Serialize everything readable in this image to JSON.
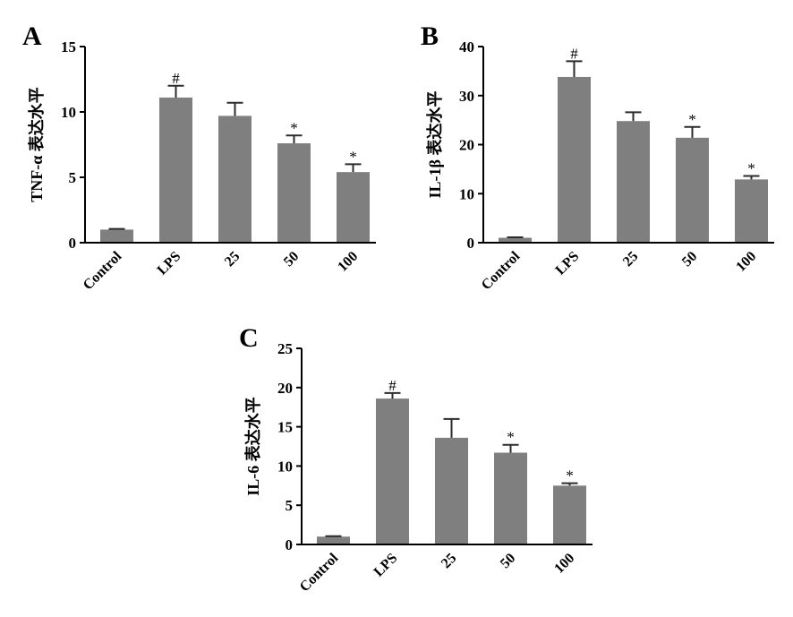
{
  "chart_data": [
    {
      "type": "bar",
      "panel": "A",
      "ylabel": "TNF-α 表达水平",
      "categories": [
        "Control",
        "LPS",
        "25",
        "50",
        "100"
      ],
      "values": [
        1.0,
        11.1,
        9.7,
        7.6,
        5.4
      ],
      "errors": [
        0.05,
        0.9,
        1.0,
        0.6,
        0.6
      ],
      "significance": [
        "",
        "#",
        "",
        "*",
        "*"
      ],
      "ylim": [
        0,
        15
      ],
      "yticks": [
        0,
        5,
        10,
        15
      ]
    },
    {
      "type": "bar",
      "panel": "B",
      "ylabel": "IL-1β 表达水平",
      "categories": [
        "Control",
        "LPS",
        "25",
        "50",
        "100"
      ],
      "values": [
        1.0,
        33.8,
        24.8,
        21.4,
        12.9
      ],
      "errors": [
        0.1,
        3.2,
        1.8,
        2.2,
        0.7
      ],
      "significance": [
        "",
        "#",
        "",
        "*",
        "*"
      ],
      "ylim": [
        0,
        40
      ],
      "yticks": [
        0,
        10,
        20,
        30,
        40
      ]
    },
    {
      "type": "bar",
      "panel": "C",
      "ylabel": "IL-6 表达水平",
      "categories": [
        "Control",
        "LPS",
        "25",
        "50",
        "100"
      ],
      "values": [
        1.0,
        18.6,
        13.6,
        11.7,
        7.5
      ],
      "errors": [
        0.05,
        0.7,
        2.4,
        1.0,
        0.3
      ],
      "significance": [
        "",
        "#",
        "",
        "*",
        "*"
      ],
      "ylim": [
        0,
        25
      ],
      "yticks": [
        0,
        5,
        10,
        15,
        20,
        25
      ]
    }
  ]
}
